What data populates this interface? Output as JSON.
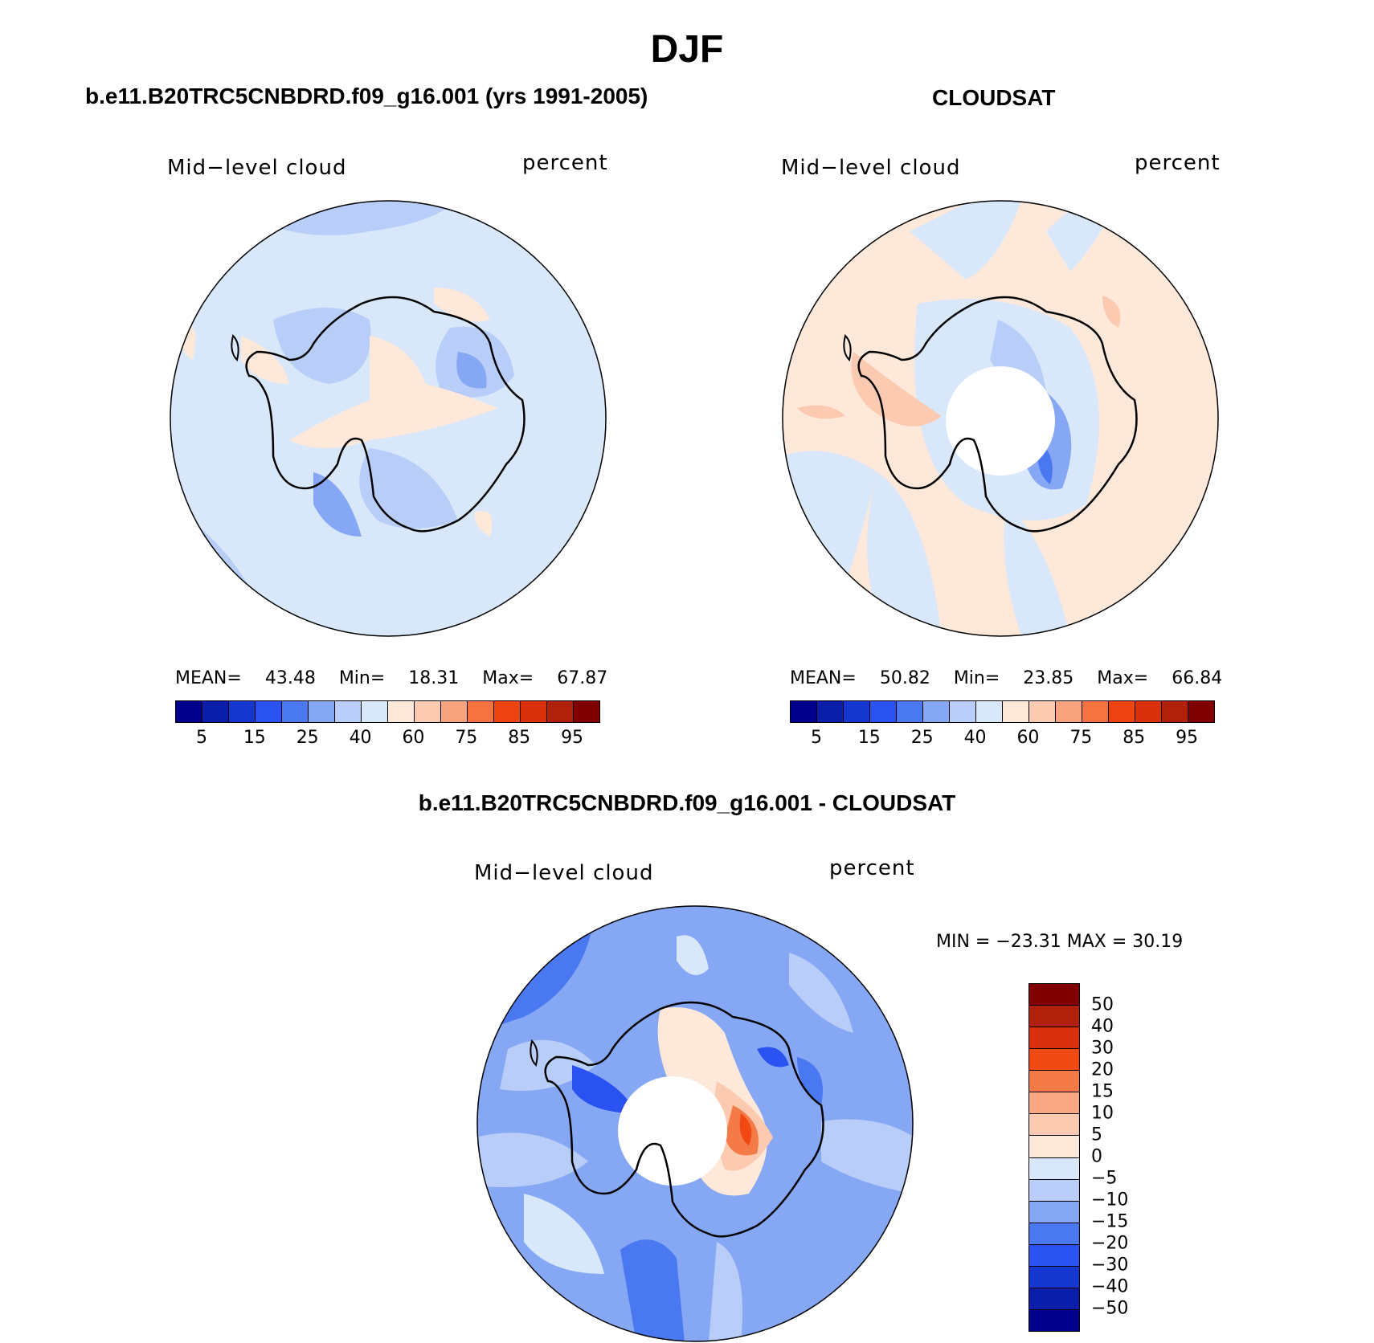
{
  "main_title": "DJF",
  "panels": [
    {
      "title": "b.e11.B20TRC5CNBDRD.f09_g16.001 (yrs 1991-2005)",
      "variable": "Mid−level cloud",
      "units": "percent",
      "stats": {
        "mean_label": "MEAN=",
        "mean": "43.48",
        "min_label": "Min=",
        "min": "18.31",
        "max_label": "Max=",
        "max": "67.87"
      },
      "colorbar_ticks": [
        "5",
        "15",
        "25",
        "40",
        "60",
        "75",
        "85",
        "95"
      ]
    },
    {
      "title": "CLOUDSAT",
      "variable": "Mid−level cloud",
      "units": "percent",
      "stats": {
        "mean_label": "MEAN=",
        "mean": "50.82",
        "min_label": "Min=",
        "min": "23.85",
        "max_label": "Max=",
        "max": "66.84"
      },
      "colorbar_ticks": [
        "5",
        "15",
        "25",
        "40",
        "60",
        "75",
        "85",
        "95"
      ]
    },
    {
      "title": "b.e11.B20TRC5CNBDRD.f09_g16.001 - CLOUDSAT",
      "variable": "Mid−level cloud",
      "units": "percent",
      "minmax_text": "MIN = −23.31  MAX =   30.19",
      "colorbar_ticks": [
        "50",
        "40",
        "30",
        "20",
        "15",
        "10",
        "5",
        "0",
        "−5",
        "−10",
        "−15",
        "−20",
        "−30",
        "−40",
        "−50"
      ]
    }
  ],
  "colors": {
    "abs_scale": [
      "#00008b",
      "#0a1eaa",
      "#1636d0",
      "#2a52f0",
      "#4a78f0",
      "#86a8f4",
      "#b8cef8",
      "#d8e8fa",
      "#fde8da",
      "#fbcab0",
      "#f8a27e",
      "#f47340",
      "#ee4412",
      "#da300a",
      "#b0200a",
      "#800000"
    ],
    "diff_scale": [
      "#800000",
      "#b0200a",
      "#d8300c",
      "#f04a12",
      "#f47a48",
      "#f8a882",
      "#fbcab0",
      "#fde8da",
      "#d8e8fa",
      "#b8cef8",
      "#86a8f4",
      "#4a78f0",
      "#2a52f0",
      "#1636d0",
      "#0a1eaa",
      "#00008b"
    ],
    "map_background_model": "#d8e8fa",
    "map_background_obs": "#fde8da",
    "map_background_diff": "#86a8f4"
  }
}
